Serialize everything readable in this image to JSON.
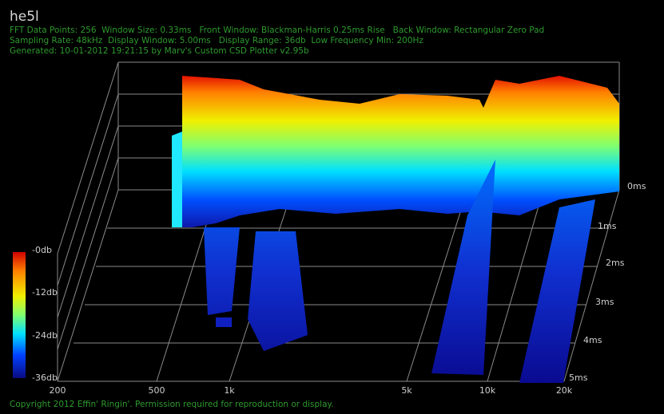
{
  "header": {
    "title": "he5l",
    "info": [
      "FFT Data Points: 256  Window Size: 0.33ms   Front Window: Blackman-Harris 0.25ms Rise   Back Window: Rectangular Zero Pad",
      "Sampling Rate: 48kHz  Display Window: 5.00ms   Display Range: 36db  Low Frequency Min: 200Hz",
      "Generated: 10-01-2012 19:21:15 by Marv's Custom CSD Plotter v2.95b"
    ]
  },
  "frequency_axis": {
    "ticks": [
      "200",
      "500",
      "1k",
      "5k",
      "10k",
      "20k"
    ]
  },
  "time_axis": {
    "ticks": [
      "0ms",
      "1ms",
      "2ms",
      "3ms",
      "4ms",
      "5ms"
    ]
  },
  "color_scale": {
    "ticks": [
      "-0db",
      "-12db",
      "-24db",
      "-36db"
    ]
  },
  "footer": {
    "copyright": "Copyright 2012 Effin' Ringin'. Permission required for reproduction or display."
  }
}
